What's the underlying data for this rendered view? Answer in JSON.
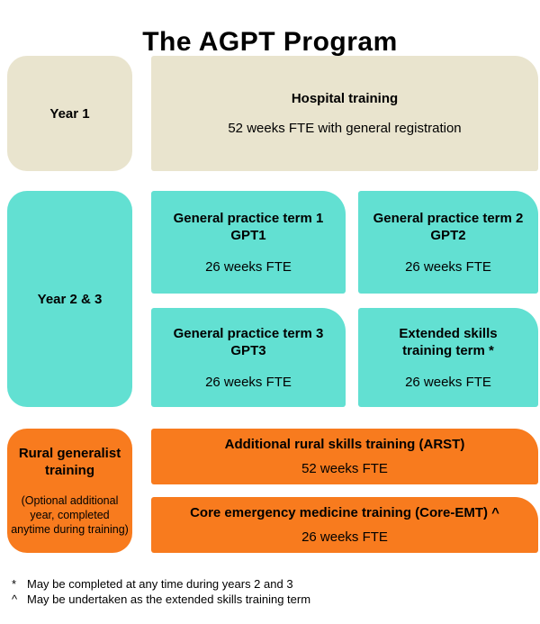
{
  "title": "The AGPT Program",
  "colors": {
    "beige": "#E9E4CE",
    "teal": "#62E0D2",
    "orange": "#F87B1E",
    "text": "#000000",
    "background": "#FFFFFF"
  },
  "year1": {
    "label": "Year 1",
    "hospital": {
      "title": "Hospital training",
      "detail": "52 weeks FTE with general registration"
    }
  },
  "year23": {
    "label": "Year 2 & 3",
    "gpt1": {
      "line1": "General practice term 1",
      "line2": "GPT1",
      "detail": "26 weeks FTE"
    },
    "gpt2": {
      "line1": "General practice term 2",
      "line2": "GPT2",
      "detail": "26 weeks FTE"
    },
    "gpt3": {
      "line1": "General practice term 3",
      "line2": "GPT3",
      "detail": "26 weeks FTE"
    },
    "extended": {
      "title": "Extended skills training term *",
      "detail": "26 weeks FTE"
    }
  },
  "rural": {
    "label": "Rural generalist training",
    "sublabel": "(Optional additional year, completed anytime during training)",
    "arst": {
      "title": "Additional rural skills training (ARST)",
      "detail": "52 weeks FTE"
    },
    "emt": {
      "title": "Core emergency medicine training (Core-EMT) ^",
      "detail": "26 weeks FTE"
    }
  },
  "footnotes": [
    {
      "marker": "*",
      "text": "May be completed at any time during years 2 and 3"
    },
    {
      "marker": "^",
      "text": "May be undertaken as the extended skills training term"
    }
  ]
}
